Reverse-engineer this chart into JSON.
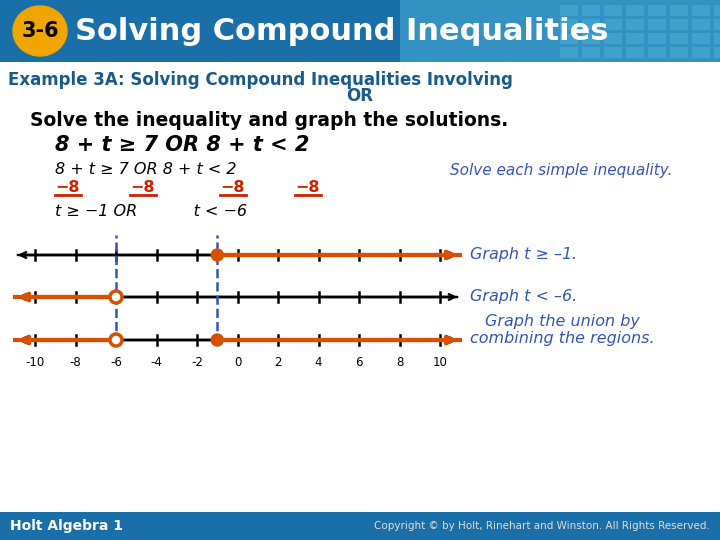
{
  "bg_color": "#ffffff",
  "header_bg_left": "#1a6fa8",
  "header_bg_right": "#4ab0d8",
  "header_text": "Solving Compound Inequalities",
  "header_num": "3-6",
  "header_num_bg": "#f0a500",
  "example_text_line1": "Example 3A: Solving Compound Inequalities Involving",
  "example_text_line2": "OR",
  "example_color": "#1a5a8a",
  "solve_text": "Solve the inequality and graph the solutions.",
  "inequality_bold": "8 + t ≥ 7 OR 8 + t < 2",
  "side_note": "Solve each simple inequality.",
  "graph1_label": "Graph t ≥ –1.",
  "graph2_label": "Graph t < –6.",
  "graph3_label": "Graph the union by\ncombining the regions.",
  "number_line_ticks": [
    -10,
    -8,
    -6,
    -4,
    -2,
    0,
    2,
    4,
    6,
    8,
    10
  ],
  "orange_color": "#d94f00",
  "blue_dashed_color": "#3355bb",
  "label_color": "#3355bb",
  "footer_bg": "#1a6fa8",
  "footer_left": "Holt Algebra 1",
  "footer_right": "Copyright © by Holt, Rinehart and Winston. All Rights Reserved.",
  "footer_text_color": "#ffffff",
  "footer_right_color": "#dddddd"
}
